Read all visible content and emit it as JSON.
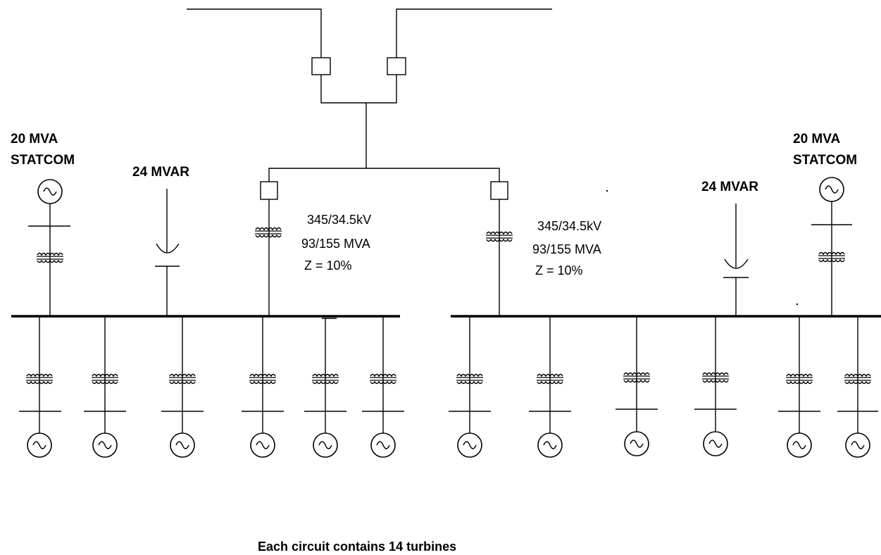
{
  "statcom_left": {
    "line1": "20 MVA",
    "line2": "STATCOM"
  },
  "statcom_right": {
    "line1": "20 MVA",
    "line2": "STATCOM"
  },
  "capbank_left": {
    "label": "24 MVAR"
  },
  "capbank_right": {
    "label": "24 MVAR"
  },
  "transformer_left": {
    "line1": "345/34.5kV",
    "line2": "93/155 MVA",
    "line3": "Z = 10%"
  },
  "transformer_right": {
    "line1": "345/34.5kV",
    "line2": "93/155 MVA",
    "line3": "Z = 10%"
  },
  "footer": {
    "note": "Each circuit contains 14 turbines"
  },
  "icons": {
    "generator": "generator-circle-sine-icon",
    "transformer": "transformer-winding-icon",
    "breaker": "breaker-square-icon",
    "capacitor": "capacitor-icon"
  }
}
